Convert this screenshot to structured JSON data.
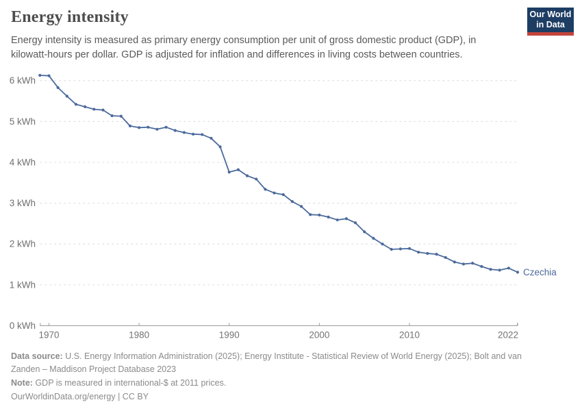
{
  "header": {
    "title": "Energy intensity",
    "subtitle": "Energy intensity is measured as primary energy consumption per unit of gross domestic product (GDP), in kilowatt-hours per dollar. GDP is adjusted for inflation and differences in living costs between countries.",
    "logo": {
      "line1": "Our World",
      "line2": "in Data",
      "bg_color": "#1d3d63",
      "accent_color": "#c5443b"
    }
  },
  "chart_data": {
    "type": "line",
    "title": "Energy intensity",
    "entity_label": "Czechia",
    "unit": "kWh",
    "line_color": "#4C6A9C",
    "grid": true,
    "legend_position": "end-of-line",
    "xlim": [
      1969,
      2022
    ],
    "ylim": [
      0,
      6.35
    ],
    "y_ticks": [
      {
        "value": 0,
        "label": "0 kWh"
      },
      {
        "value": 1,
        "label": "1 kWh"
      },
      {
        "value": 2,
        "label": "2 kWh"
      },
      {
        "value": 3,
        "label": "3 kWh"
      },
      {
        "value": 4,
        "label": "4 kWh"
      },
      {
        "value": 5,
        "label": "5 kWh"
      },
      {
        "value": 6,
        "label": "6 kWh"
      }
    ],
    "x_ticks": [
      {
        "year": 1970,
        "label": "1970"
      },
      {
        "year": 1980,
        "label": "1980"
      },
      {
        "year": 1990,
        "label": "1990"
      },
      {
        "year": 2000,
        "label": "2000"
      },
      {
        "year": 2010,
        "label": "2010"
      },
      {
        "year": 2022,
        "label": "2022"
      }
    ],
    "series": [
      {
        "name": "Czechia",
        "points": [
          [
            1969,
            6.13
          ],
          [
            1970,
            6.12
          ],
          [
            1971,
            5.83
          ],
          [
            1972,
            5.62
          ],
          [
            1973,
            5.42
          ],
          [
            1974,
            5.36
          ],
          [
            1975,
            5.3
          ],
          [
            1976,
            5.28
          ],
          [
            1977,
            5.14
          ],
          [
            1978,
            5.13
          ],
          [
            1979,
            4.89
          ],
          [
            1980,
            4.85
          ],
          [
            1981,
            4.86
          ],
          [
            1982,
            4.81
          ],
          [
            1983,
            4.86
          ],
          [
            1984,
            4.78
          ],
          [
            1985,
            4.73
          ],
          [
            1986,
            4.69
          ],
          [
            1987,
            4.68
          ],
          [
            1988,
            4.59
          ],
          [
            1989,
            4.38
          ],
          [
            1990,
            3.76
          ],
          [
            1991,
            3.82
          ],
          [
            1992,
            3.67
          ],
          [
            1993,
            3.59
          ],
          [
            1994,
            3.34
          ],
          [
            1995,
            3.25
          ],
          [
            1996,
            3.21
          ],
          [
            1997,
            3.04
          ],
          [
            1998,
            2.92
          ],
          [
            1999,
            2.72
          ],
          [
            2000,
            2.71
          ],
          [
            2001,
            2.66
          ],
          [
            2002,
            2.59
          ],
          [
            2003,
            2.62
          ],
          [
            2004,
            2.52
          ],
          [
            2005,
            2.3
          ],
          [
            2006,
            2.14
          ],
          [
            2007,
            2.0
          ],
          [
            2008,
            1.87
          ],
          [
            2009,
            1.88
          ],
          [
            2010,
            1.89
          ],
          [
            2011,
            1.8
          ],
          [
            2012,
            1.77
          ],
          [
            2013,
            1.75
          ],
          [
            2014,
            1.67
          ],
          [
            2015,
            1.56
          ],
          [
            2016,
            1.51
          ],
          [
            2017,
            1.53
          ],
          [
            2018,
            1.45
          ],
          [
            2019,
            1.38
          ],
          [
            2020,
            1.36
          ],
          [
            2021,
            1.41
          ],
          [
            2022,
            1.31
          ]
        ]
      }
    ]
  },
  "footer": {
    "data_source_label": "Data source:",
    "data_source_text": "U.S. Energy Information Administration (2025); Energy Institute - Statistical Review of World Energy (2025); Bolt and van Zanden – Maddison Project Database 2023",
    "note_label": "Note:",
    "note_text": "GDP is measured in international-$ at 2011 prices.",
    "license": "OurWorldinData.org/energy | CC BY"
  }
}
